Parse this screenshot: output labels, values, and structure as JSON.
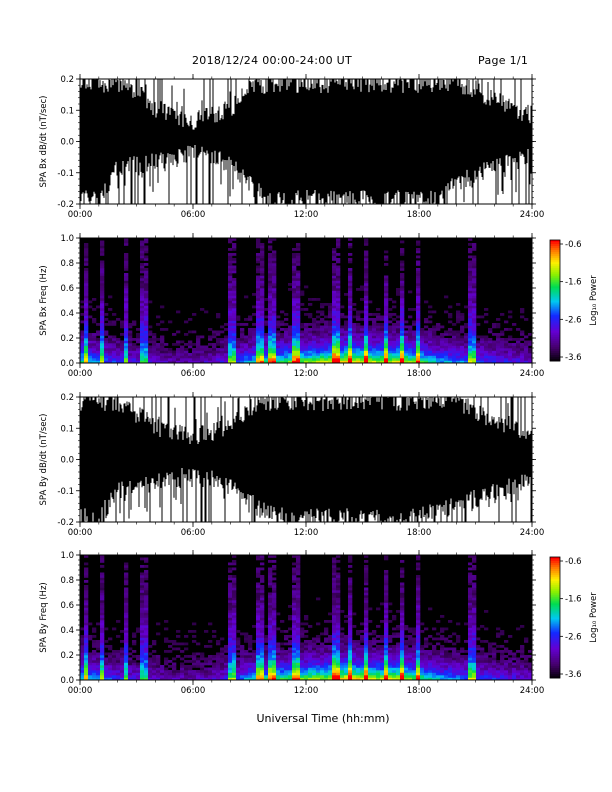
{
  "header": {
    "date_range": "2018/12/24  00:00-24:00 UT",
    "page": "Page 1/1"
  },
  "x_axis_label": "Universal Time (hh:mm)",
  "colorbar": {
    "label": "Log₁₀ Power",
    "ticks": [
      "-0.6",
      "-1.6",
      "-2.6",
      "-3.6"
    ],
    "range": [
      -3.6,
      -0.6
    ]
  },
  "chart_data": [
    {
      "type": "line",
      "ylabel": "SPA Bx dB/dt (nT/sec)",
      "ylim": [
        -0.2,
        0.2
      ],
      "y_ticks": [
        "0.2",
        "0.1",
        "0.0",
        "-0.1",
        "-0.2"
      ],
      "x_ticks": [
        "00:00",
        "06:00",
        "12:00",
        "18:00",
        "24:00"
      ],
      "xlim_hours": [
        0,
        24
      ],
      "series_color": "#000000",
      "envelope": {
        "hours": [
          0,
          1,
          2,
          3,
          4,
          5,
          6,
          7,
          8,
          9,
          10,
          11,
          12,
          13,
          14,
          15,
          16,
          17,
          18,
          19,
          20,
          21,
          22,
          23,
          24
        ],
        "lower": [
          -0.2,
          -0.2,
          -0.1,
          -0.09,
          -0.08,
          -0.07,
          -0.05,
          -0.06,
          -0.09,
          -0.15,
          -0.2,
          -0.2,
          -0.2,
          -0.2,
          -0.2,
          -0.2,
          -0.2,
          -0.2,
          -0.2,
          -0.18,
          -0.15,
          -0.12,
          -0.1,
          -0.08,
          -0.06
        ],
        "upper": [
          0.2,
          0.2,
          0.2,
          0.18,
          0.12,
          0.1,
          0.08,
          0.1,
          0.12,
          0.18,
          0.2,
          0.2,
          0.2,
          0.2,
          0.2,
          0.2,
          0.2,
          0.2,
          0.2,
          0.2,
          0.2,
          0.18,
          0.15,
          0.12,
          0.1
        ]
      }
    },
    {
      "type": "heatmap",
      "ylabel": "SPA Bx Freq (Hz)",
      "ylim": [
        0.0,
        1.0
      ],
      "y_ticks": [
        "1.0",
        "0.8",
        "0.6",
        "0.4",
        "0.2",
        "0.0"
      ],
      "x_ticks": [
        "00:00",
        "06:00",
        "12:00",
        "18:00",
        "24:00"
      ],
      "xlim_hours": [
        0,
        24
      ],
      "zlim_log10_power": [
        -3.6,
        -0.6
      ],
      "activity_profile": {
        "hours": [
          0,
          1,
          2,
          3,
          4,
          5,
          6,
          7,
          8,
          9,
          10,
          11,
          12,
          13,
          14,
          15,
          16,
          17,
          18,
          19,
          20,
          21,
          22,
          23,
          24
        ],
        "level": [
          0.6,
          0.45,
          0.35,
          0.3,
          0.25,
          0.2,
          0.2,
          0.25,
          0.35,
          0.5,
          0.6,
          0.65,
          0.7,
          0.75,
          0.85,
          0.8,
          0.75,
          0.8,
          0.65,
          0.5,
          0.45,
          0.4,
          0.35,
          0.3,
          0.25
        ]
      }
    },
    {
      "type": "line",
      "ylabel": "SPA By dB/dt (nT/sec)",
      "ylim": [
        -0.2,
        0.2
      ],
      "y_ticks": [
        "0.2",
        "0.1",
        "0.0",
        "-0.1",
        "-0.2"
      ],
      "x_ticks": [
        "00:00",
        "06:00",
        "12:00",
        "18:00",
        "24:00"
      ],
      "xlim_hours": [
        0,
        24
      ],
      "series_color": "#000000",
      "envelope": {
        "hours": [
          0,
          1,
          2,
          3,
          4,
          5,
          6,
          7,
          8,
          9,
          10,
          11,
          12,
          13,
          14,
          15,
          16,
          17,
          18,
          19,
          20,
          21,
          22,
          23,
          24
        ],
        "lower": [
          -0.2,
          -0.2,
          -0.12,
          -0.1,
          -0.09,
          -0.08,
          -0.06,
          -0.07,
          -0.1,
          -0.15,
          -0.19,
          -0.2,
          -0.2,
          -0.2,
          -0.2,
          -0.2,
          -0.2,
          -0.2,
          -0.2,
          -0.18,
          -0.16,
          -0.14,
          -0.12,
          -0.1,
          -0.08
        ],
        "upper": [
          0.2,
          0.2,
          0.2,
          0.16,
          0.12,
          0.1,
          0.09,
          0.1,
          0.13,
          0.18,
          0.2,
          0.2,
          0.2,
          0.2,
          0.2,
          0.2,
          0.2,
          0.2,
          0.2,
          0.2,
          0.2,
          0.17,
          0.14,
          0.12,
          0.1
        ]
      }
    },
    {
      "type": "heatmap",
      "ylabel": "SPA By Freq (Hz)",
      "ylim": [
        0.0,
        1.0
      ],
      "y_ticks": [
        "1.0",
        "0.8",
        "0.6",
        "0.4",
        "0.2",
        "0.0"
      ],
      "x_ticks": [
        "00:00",
        "06:00",
        "12:00",
        "18:00",
        "24:00"
      ],
      "xlim_hours": [
        0,
        24
      ],
      "zlim_log10_power": [
        -3.6,
        -0.6
      ],
      "activity_profile": {
        "hours": [
          0,
          1,
          2,
          3,
          4,
          5,
          6,
          7,
          8,
          9,
          10,
          11,
          12,
          13,
          14,
          15,
          16,
          17,
          18,
          19,
          20,
          21,
          22,
          23,
          24
        ],
        "level": [
          0.6,
          0.45,
          0.35,
          0.3,
          0.25,
          0.2,
          0.2,
          0.25,
          0.35,
          0.5,
          0.6,
          0.65,
          0.7,
          0.75,
          0.85,
          0.8,
          0.75,
          0.8,
          0.65,
          0.5,
          0.45,
          0.4,
          0.35,
          0.3,
          0.25
        ]
      }
    }
  ]
}
